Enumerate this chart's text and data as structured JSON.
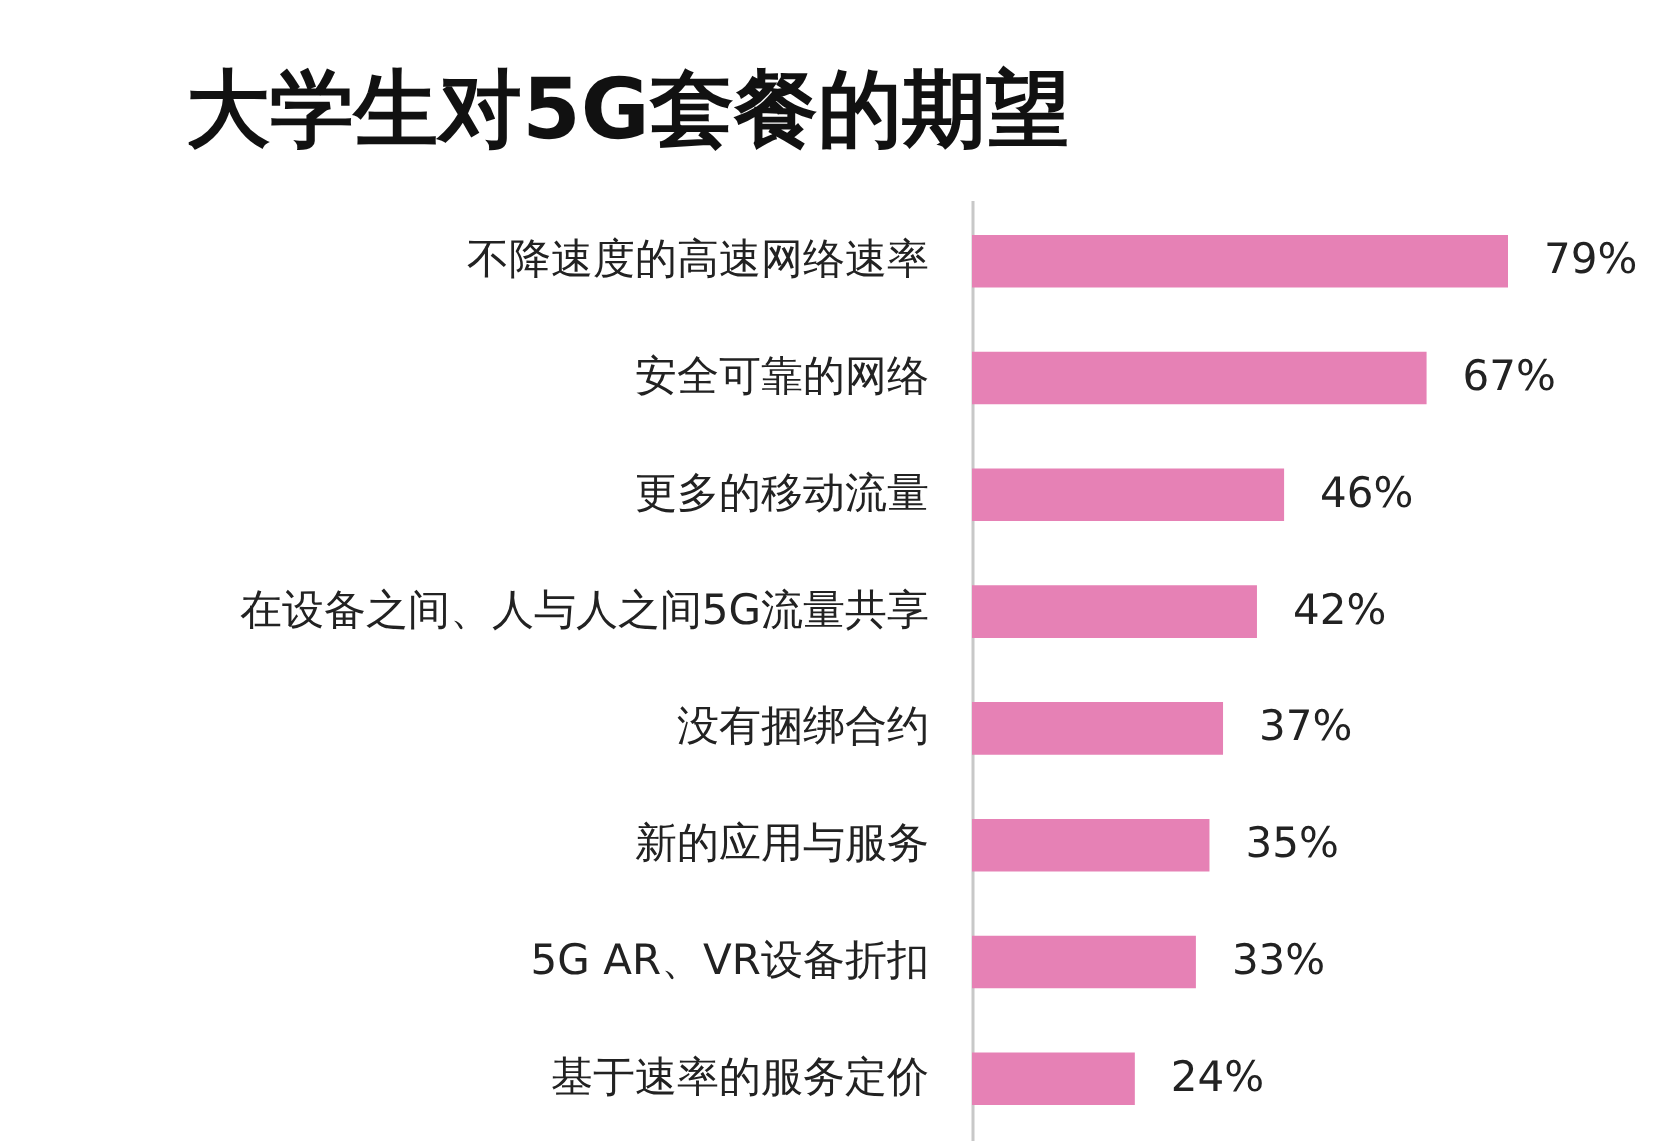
{
  "chart_data": {
    "type": "bar",
    "orientation": "horizontal",
    "title": "大学生对5G套餐的期望",
    "categories": [
      "不降速度的高速网络速率",
      "安全可靠的网络",
      "更多的移动流量",
      "在设备之间、人与人之间5G流量共享",
      "没有捆绑合约",
      "新的应用与服务",
      "5G AR、VR设备折扣",
      "基于速率的服务定价"
    ],
    "values": [
      79,
      67,
      46,
      42,
      37,
      35,
      33,
      24
    ],
    "value_labels": [
      "79%",
      "67%",
      "46%",
      "42%",
      "37%",
      "35%",
      "33%",
      "24%"
    ],
    "color": "#e681b5",
    "tick_labels": "y"
  }
}
